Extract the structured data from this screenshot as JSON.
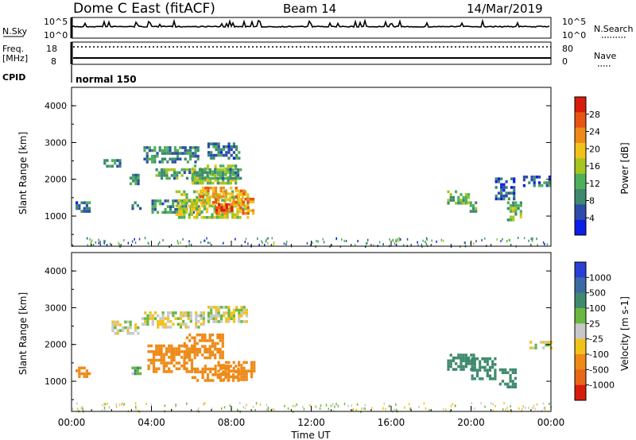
{
  "header": {
    "station": "Dome C East (fitACF)",
    "beam": "Beam 14",
    "date": "14/Mar/2019"
  },
  "panels": {
    "nsky_label": "N.Sky",
    "nsky_tick_hi": "10^5",
    "nsky_tick_lo": "10^0",
    "nsearch_label": "N.Search",
    "nsearch_tick_hi": "10^5",
    "nsearch_tick_lo": "10^0",
    "freq_label": "Freq.",
    "freq_unit": "[MHz]",
    "freq_tick_hi": "18",
    "freq_tick_lo": "8",
    "nave_label": "Nave",
    "nave_tick_hi": "80",
    "nave_tick_lo": "0",
    "cpid_label": "CPID",
    "cpid_value": "normal 150"
  },
  "colors": {
    "power_scale": [
      "#0a1ee6",
      "#2d4ca8",
      "#3d8a6e",
      "#4fb05a",
      "#a6c61e",
      "#f2c21a",
      "#ee8a18",
      "#e85414",
      "#d81c0c"
    ],
    "velocity_scale": [
      "#2a3fd6",
      "#3c6aa4",
      "#3f8a6e",
      "#6ab840",
      "#c8c8c8",
      "#f2c21a",
      "#ee8a18",
      "#e8681a",
      "#d81c0c"
    ]
  },
  "chart_data": [
    {
      "type": "heatmap",
      "name": "power",
      "xlabel": "",
      "ylabel": "Slant Range [km]",
      "xlim": [
        "00:00",
        "24:00"
      ],
      "ylim": [
        180,
        4500
      ],
      "yticks": [
        1000,
        2000,
        3000,
        4000
      ],
      "colorbar": {
        "label": "Power [dB]",
        "ticks": [
          4,
          8,
          12,
          16,
          20,
          24,
          28
        ],
        "range": [
          0,
          32
        ]
      },
      "regions": [
        {
          "t0": 0.2,
          "t1": 0.95,
          "r0": 1150,
          "r1": 1400,
          "value": 8
        },
        {
          "t0": 1.6,
          "t1": 2.4,
          "r0": 2350,
          "r1": 2550,
          "value": 9
        },
        {
          "t0": 2.9,
          "t1": 3.3,
          "r0": 1900,
          "r1": 2150,
          "value": 9
        },
        {
          "t0": 3.0,
          "t1": 3.4,
          "r0": 1200,
          "r1": 1400,
          "value": 7
        },
        {
          "t0": 4.0,
          "t1": 6.5,
          "r0": 1100,
          "r1": 1450,
          "value": 9
        },
        {
          "t0": 5.2,
          "t1": 8.8,
          "r0": 1000,
          "r1": 1700,
          "value": 16
        },
        {
          "t0": 6.4,
          "t1": 8.6,
          "r0": 1300,
          "r1": 1800,
          "value": 22
        },
        {
          "t0": 7.2,
          "t1": 8.0,
          "r0": 1050,
          "r1": 1350,
          "value": 27
        },
        {
          "t0": 8.4,
          "t1": 9.1,
          "r0": 1100,
          "r1": 1500,
          "value": 23
        },
        {
          "t0": 6.0,
          "t1": 8.2,
          "r0": 1900,
          "r1": 2400,
          "value": 15
        },
        {
          "t0": 4.2,
          "t1": 8.6,
          "r0": 2000,
          "r1": 2300,
          "value": 11
        },
        {
          "t0": 3.6,
          "t1": 6.3,
          "r0": 2500,
          "r1": 2900,
          "value": 9
        },
        {
          "t0": 6.8,
          "t1": 8.4,
          "r0": 2600,
          "r1": 3000,
          "value": 8
        },
        {
          "t0": 18.8,
          "t1": 19.9,
          "r0": 1350,
          "r1": 1700,
          "value": 12
        },
        {
          "t0": 19.8,
          "t1": 20.3,
          "r0": 1100,
          "r1": 1400,
          "value": 10
        },
        {
          "t0": 21.2,
          "t1": 22.1,
          "r0": 1500,
          "r1": 2050,
          "value": 6
        },
        {
          "t0": 21.8,
          "t1": 22.5,
          "r0": 900,
          "r1": 1400,
          "value": 14
        },
        {
          "t0": 22.6,
          "t1": 24.0,
          "r0": 1850,
          "r1": 2100,
          "value": 7
        }
      ]
    },
    {
      "type": "heatmap",
      "name": "velocity",
      "xlabel": "Time UT",
      "ylabel": "Slant Range [km]",
      "xlim": [
        "00:00",
        "24:00"
      ],
      "xticks": [
        "00:00",
        "04:00",
        "08:00",
        "12:00",
        "16:00",
        "20:00",
        "00:00"
      ],
      "ylim": [
        180,
        4500
      ],
      "yticks": [
        1000,
        2000,
        3000,
        4000
      ],
      "colorbar": {
        "label": "Velocity [m s-1]",
        "ticks": [
          "1000",
          "500",
          "100",
          "25",
          "-25",
          "-100",
          "-500",
          "-1000"
        ]
      },
      "regions": [
        {
          "t0": 0.2,
          "t1": 0.9,
          "r0": 1150,
          "r1": 1400,
          "value": -300
        },
        {
          "t0": 2.0,
          "t1": 3.4,
          "r0": 2300,
          "r1": 2650,
          "value": 0
        },
        {
          "t0": 3.5,
          "t1": 6.6,
          "r0": 2500,
          "r1": 2900,
          "value": 0
        },
        {
          "t0": 6.8,
          "t1": 8.8,
          "r0": 2600,
          "r1": 3050,
          "value": 0
        },
        {
          "t0": 3.8,
          "t1": 6.0,
          "r0": 1250,
          "r1": 2000,
          "value": -300
        },
        {
          "t0": 5.6,
          "t1": 7.6,
          "r0": 1650,
          "r1": 2300,
          "value": -300
        },
        {
          "t0": 7.3,
          "t1": 9.1,
          "r0": 1050,
          "r1": 1550,
          "value": -300
        },
        {
          "t0": 6.0,
          "t1": 8.4,
          "r0": 1000,
          "r1": 1450,
          "value": -300
        },
        {
          "t0": 3.0,
          "t1": 3.4,
          "r0": 1200,
          "r1": 1400,
          "value": 60
        },
        {
          "t0": 18.8,
          "t1": 20.1,
          "r0": 1300,
          "r1": 1750,
          "value": 200
        },
        {
          "t0": 20.0,
          "t1": 21.2,
          "r0": 1100,
          "r1": 1650,
          "value": 200
        },
        {
          "t0": 21.4,
          "t1": 22.2,
          "r0": 850,
          "r1": 1350,
          "value": 200
        },
        {
          "t0": 22.8,
          "t1": 24.0,
          "r0": 1900,
          "r1": 2100,
          "value": 0
        }
      ]
    }
  ]
}
